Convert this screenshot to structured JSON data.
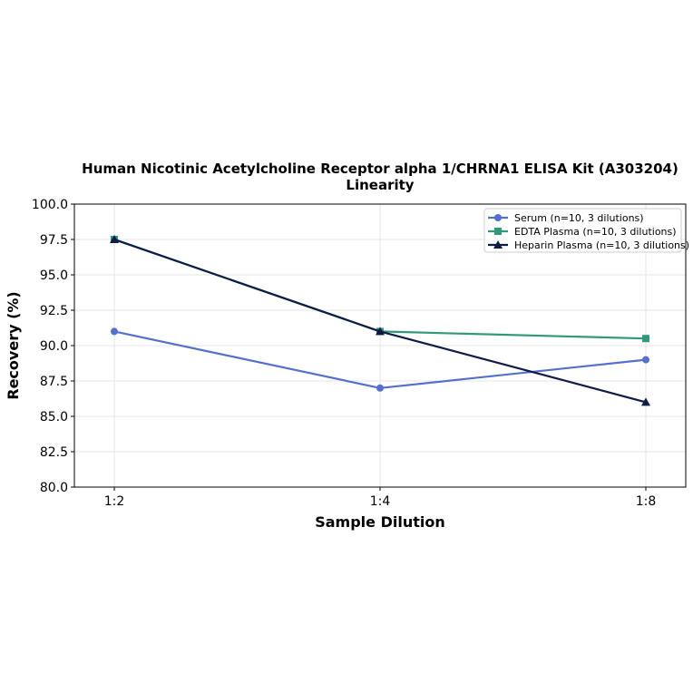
{
  "chart_data": {
    "type": "line",
    "title_line1": "Human Nicotinic Acetylcholine Receptor alpha 1/CHRNA1 ELISA Kit (A303204)",
    "title_line2": "Linearity",
    "xlabel": "Sample Dilution",
    "ylabel": "Recovery (%)",
    "categories": [
      "1:2",
      "1:4",
      "1:8"
    ],
    "ylim": [
      80.0,
      100.0
    ],
    "yticks": [
      "80.0",
      "82.5",
      "85.0",
      "87.5",
      "90.0",
      "92.5",
      "95.0",
      "97.5",
      "100.0"
    ],
    "grid": true,
    "legend_position": "top-right",
    "series": [
      {
        "name": "Serum (n=10, 3 dilutions)",
        "values": [
          91.0,
          87.0,
          89.0
        ],
        "color": "#5470cc",
        "marker": "circle"
      },
      {
        "name": "EDTA Plasma (n=10, 3 dilutions)",
        "values": [
          97.5,
          91.0,
          90.5
        ],
        "color": "#31997a",
        "marker": "square"
      },
      {
        "name": "Heparin Plasma (n=10, 3 dilutions)",
        "values": [
          97.5,
          91.0,
          86.0
        ],
        "color": "#0f1c45",
        "marker": "triangle"
      }
    ]
  }
}
